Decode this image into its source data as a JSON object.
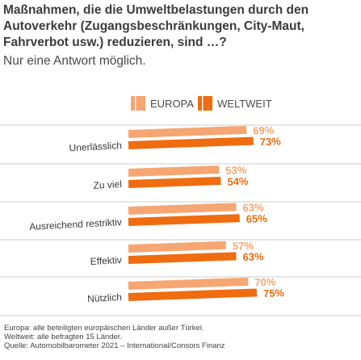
{
  "title": "Maßnahmen, die die Umweltbelastungen durch den Autoverkehr (Zugangsbeschränkungen, City-Maut, Fahrverbot usw.) reduzieren, sind …?",
  "subtitle": "Nur eine Antwort möglich.",
  "chart_data": {
    "type": "bar",
    "orientation": "horizontal",
    "categories": [
      "Unerlässlich",
      "Zu viel",
      "Ausreichend restriktiv",
      "Effektiv",
      "Nützlich"
    ],
    "series": [
      {
        "name": "EUROPA",
        "values": [
          69,
          53,
          63,
          57,
          70
        ],
        "labels": [
          "69%",
          "53%",
          "63%",
          "57%",
          "70%"
        ],
        "color": "#f5a672"
      },
      {
        "name": "WELTWEIT",
        "values": [
          73,
          54,
          65,
          63,
          75
        ],
        "labels": [
          "73%",
          "54%",
          "65%",
          "63%",
          "75%"
        ],
        "color": "#ef6c10"
      }
    ],
    "xlim": [
      0,
      100
    ],
    "legend_position": "top",
    "grid": false
  },
  "footnotes": [
    "Europa: alle beteiligten europäischen Länder außer Türkei.",
    "Weltweit: alle befragten 15 Länder.",
    "Quelle: Automobilbarometer 2021 – International/Consors Finanz"
  ]
}
